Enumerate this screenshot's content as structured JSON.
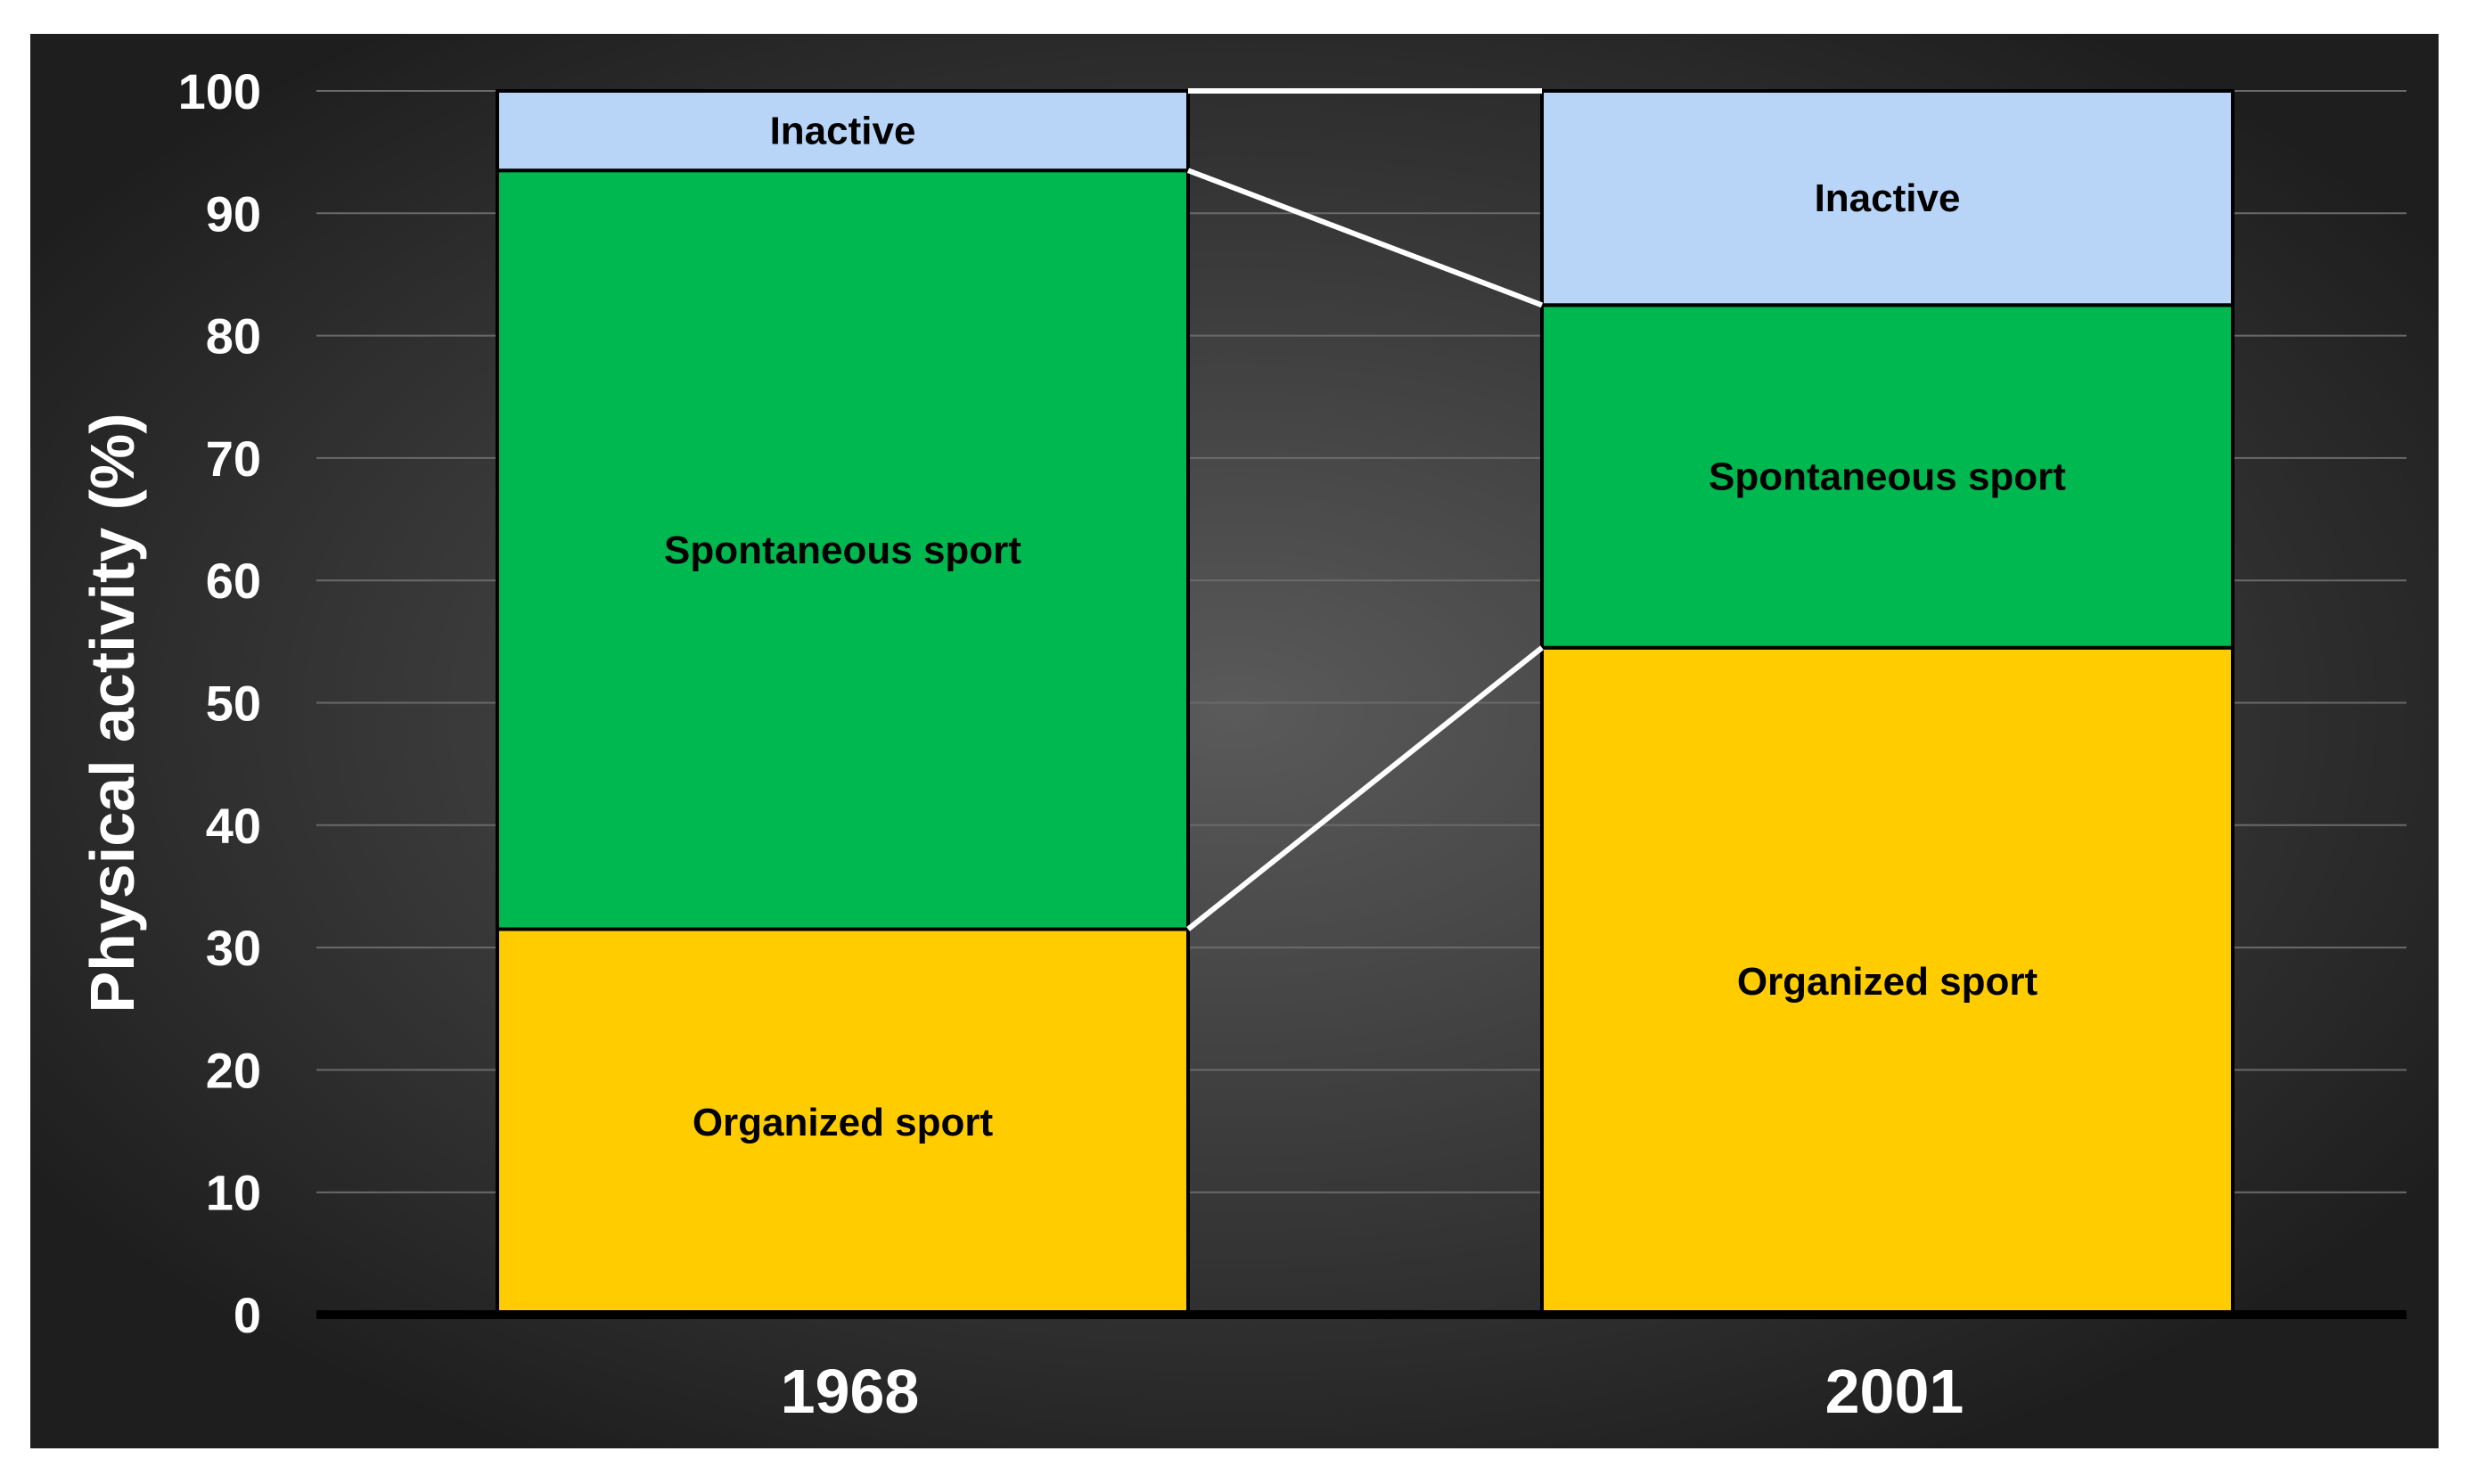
{
  "chart_data": {
    "type": "bar",
    "stacked": true,
    "categories": [
      "1968",
      "2001"
    ],
    "ylabel": "Physical activity (%)",
    "xlabel": "",
    "ylim": [
      0,
      100
    ],
    "yticks": [
      0,
      10,
      20,
      30,
      40,
      50,
      60,
      70,
      80,
      90,
      100
    ],
    "grid": true,
    "legend": "none",
    "series": [
      {
        "name": "Organized sport",
        "label": "Organized sport",
        "color": "#FFCC00",
        "values": [
          31.5,
          54.5
        ]
      },
      {
        "name": "Spontaneous sport",
        "label": "Spontaneous sport",
        "color": "#00B850",
        "values": [
          62,
          28
        ]
      },
      {
        "name": "Inactive",
        "label": "Inactive",
        "color": "#B8D4F6",
        "values": [
          6.5,
          17.5
        ]
      }
    ],
    "connector_lines": true,
    "colors": {
      "background_dark": "#1f1f1f",
      "background_light": "#565656",
      "axis": "#000000",
      "connector": "#ffffff"
    }
  }
}
